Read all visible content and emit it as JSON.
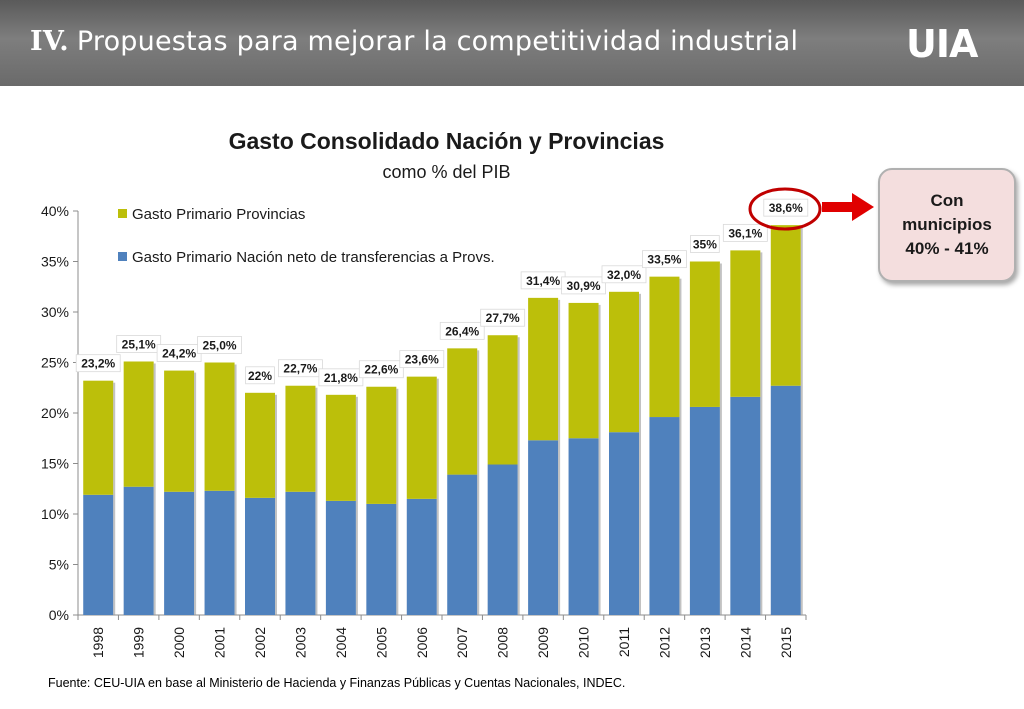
{
  "header": {
    "roman": "IV.",
    "title": "Propuestas para mejorar la competitividad industrial",
    "logo": "UIA"
  },
  "callout": {
    "line1": "Con",
    "line2": "municipios",
    "line3": "40% - 41%"
  },
  "source": "Fuente: CEU-UIA en base al Ministerio de Hacienda y Finanzas Públicas  y Cuentas Nacionales, INDEC.",
  "colors": {
    "provincias": "#bcbf0a",
    "nacion": "#4f81bd",
    "callout_border": "#c00000",
    "arrow": "#e00000"
  },
  "chart_data": {
    "type": "bar",
    "stacked": true,
    "title": "Gasto Consolidado Nación y Provincias",
    "subtitle": "como % del PIB",
    "categories": [
      "1998",
      "1999",
      "2000",
      "2001",
      "2002",
      "2003",
      "2004",
      "2005",
      "2006",
      "2007",
      "2008",
      "2009",
      "2010",
      "2011",
      "2012",
      "2013",
      "2014",
      "2015"
    ],
    "series": [
      {
        "name": "Gasto Primario Nación neto de transferencias a Provs.",
        "values": [
          11.9,
          12.7,
          12.2,
          12.3,
          11.6,
          12.2,
          11.3,
          11.0,
          11.5,
          13.9,
          14.9,
          17.3,
          17.5,
          18.1,
          19.6,
          20.6,
          21.6,
          22.7
        ]
      },
      {
        "name": "Gasto Primario Provincias",
        "values": [
          11.3,
          12.4,
          12.0,
          12.7,
          10.4,
          10.5,
          10.5,
          11.6,
          12.1,
          12.5,
          12.8,
          14.1,
          13.4,
          13.9,
          13.9,
          14.4,
          14.5,
          15.9
        ]
      }
    ],
    "totals_labels": [
      "23,2%",
      "25,1%",
      "24,2%",
      "25,0%",
      "22%",
      "22,7%",
      "21,8%",
      "22,6%",
      "23,6%",
      "26,4%",
      "27,7%",
      "31,4%",
      "30,9%",
      "32,0%",
      "33,5%",
      "35%",
      "36,1%",
      "38,6%"
    ],
    "totals": [
      23.2,
      25.1,
      24.2,
      25.0,
      22.0,
      22.7,
      21.8,
      22.6,
      23.6,
      26.4,
      27.7,
      31.4,
      30.9,
      32.0,
      33.5,
      35.0,
      36.1,
      38.6
    ],
    "y_ticks": [
      "0%",
      "5%",
      "10%",
      "15%",
      "20%",
      "25%",
      "30%",
      "35%",
      "40%"
    ],
    "y_tick_values": [
      0,
      5,
      10,
      15,
      20,
      25,
      30,
      35,
      40
    ],
    "ylim": [
      0,
      40
    ],
    "legend_position": "top-left",
    "grid": false
  }
}
